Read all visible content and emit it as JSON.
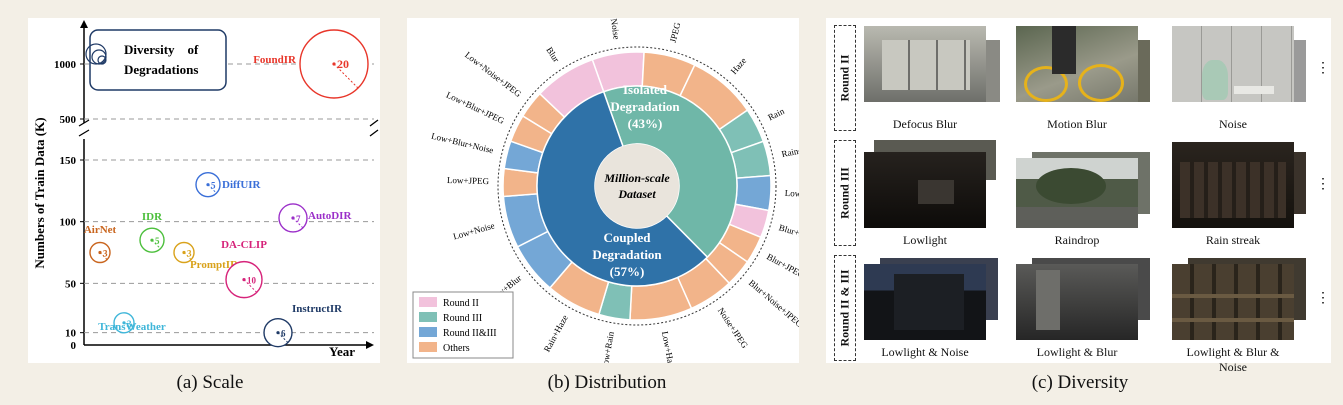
{
  "panel_a": {
    "caption": "(a) Scale",
    "ylabel": "Numbers of Train Data (K)",
    "xlabel": "Year",
    "upper_ticks": [
      "1000",
      "500"
    ],
    "lower_ticks": [
      "150",
      "100",
      "50",
      "10",
      "0"
    ],
    "legend_title": "Diversity    of Degradations",
    "points": [
      {
        "name": "FoundIR",
        "num": "20",
        "color": "#e8362a"
      },
      {
        "name": "DiffUIR",
        "num": "5",
        "color": "#3a6fd8"
      },
      {
        "name": "AutoDIR",
        "num": "7",
        "color": "#9b2fc9"
      },
      {
        "name": "IDR",
        "num": "5",
        "color": "#4cbf3c"
      },
      {
        "name": "AirNet",
        "num": "3",
        "color": "#c9651e"
      },
      {
        "name": "PromptIR",
        "num": "3",
        "color": "#d9a21b"
      },
      {
        "name": "DA-CLIP",
        "num": "10",
        "color": "#d6237a"
      },
      {
        "name": "TransWeather",
        "num": "3",
        "color": "#3fb6d9"
      },
      {
        "name": "InstructIR",
        "num": "6",
        "color": "#1f3a66"
      }
    ]
  },
  "chart_data": {
    "type": "scatter",
    "title": "",
    "xlabel": "Year",
    "ylabel": "Numbers of Train Data (K)",
    "y_axis_break": [
      150,
      500
    ],
    "series": [
      {
        "name": "FoundIR",
        "train_data_k": 1000,
        "degradations": 20
      },
      {
        "name": "DiffUIR",
        "train_data_k": 130,
        "degradations": 5
      },
      {
        "name": "AutoDIR",
        "train_data_k": 103,
        "degradations": 7
      },
      {
        "name": "IDR",
        "train_data_k": 85,
        "degradations": 5
      },
      {
        "name": "AirNet",
        "train_data_k": 75,
        "degradations": 3
      },
      {
        "name": "PromptIR",
        "train_data_k": 75,
        "degradations": 3
      },
      {
        "name": "DA-CLIP",
        "train_data_k": 53,
        "degradations": 10
      },
      {
        "name": "TransWeather",
        "train_data_k": 18,
        "degradations": 3
      },
      {
        "name": "InstructIR",
        "train_data_k": 10,
        "degradations": 6
      }
    ]
  },
  "panel_b": {
    "caption": "(b) Distribution",
    "center": [
      "Million-scale",
      "Dataset"
    ],
    "isolated": {
      "label": [
        "Isolated",
        "Degradation",
        "(43%)"
      ],
      "percent": 43,
      "color": "#6fb7a8"
    },
    "coupled": {
      "label": [
        "Coupled",
        "Degradation",
        "(57%)"
      ],
      "percent": 57,
      "color": "#2f72a8"
    },
    "legend": [
      {
        "label": "Round II",
        "color": "#f2c2dc"
      },
      {
        "label": "Round III",
        "color": "#7fc0b6"
      },
      {
        "label": "Round II&III",
        "color": "#74a7d6"
      },
      {
        "label": "Others",
        "color": "#f2b48a"
      }
    ],
    "segments": [
      {
        "label": "Noise",
        "cat": 0,
        "w": 3
      },
      {
        "label": "JPEG",
        "cat": 3,
        "w": 3
      },
      {
        "label": "Haze",
        "cat": 3,
        "w": 4
      },
      {
        "label": "Rain",
        "cat": 1,
        "w": 2
      },
      {
        "label": "Raindrop",
        "cat": 1,
        "w": 2
      },
      {
        "label": "Lowlight",
        "cat": 2,
        "w": 2
      },
      {
        "label": "Blur+Noise",
        "cat": 0,
        "w": 1.6
      },
      {
        "label": "Blur+JPEG",
        "cat": 3,
        "w": 1.6
      },
      {
        "label": "Blur+Noise+JPEG",
        "cat": 3,
        "w": 1.6
      },
      {
        "label": "Noise+JPEG",
        "cat": 3,
        "w": 2.6
      },
      {
        "label": "Low+Haze",
        "cat": 3,
        "w": 3.6
      },
      {
        "label": "Low+Rain",
        "cat": 1,
        "w": 1.8
      },
      {
        "label": "Rain+Haze",
        "cat": 3,
        "w": 3.2
      },
      {
        "label": "Low+Blur",
        "cat": 2,
        "w": 3
      },
      {
        "label": "Low+Noise",
        "cat": 2,
        "w": 3
      },
      {
        "label": "Low+JPEG",
        "cat": 3,
        "w": 1.6
      },
      {
        "label": "Low+Blur+Noise",
        "cat": 2,
        "w": 1.6
      },
      {
        "label": "Low+Blur+JPEG",
        "cat": 3,
        "w": 1.6
      },
      {
        "label": "Low+Noise+JPEG",
        "cat": 3,
        "w": 1.6
      },
      {
        "label": "Blur",
        "cat": 0,
        "w": 3.6
      }
    ]
  },
  "panel_c": {
    "caption": "(c) Diversity",
    "rows": [
      {
        "round": "Round II",
        "labels": [
          "Defocus Blur",
          "Motion Blur",
          "Noise"
        ]
      },
      {
        "round": "Round III",
        "labels": [
          "Lowlight",
          "Raindrop",
          "Rain streak"
        ]
      },
      {
        "round": "Round II & III",
        "labels": [
          "Lowlight & Noise",
          "Lowlight & Blur",
          "Lowlight & Blur & Noise"
        ]
      }
    ]
  }
}
